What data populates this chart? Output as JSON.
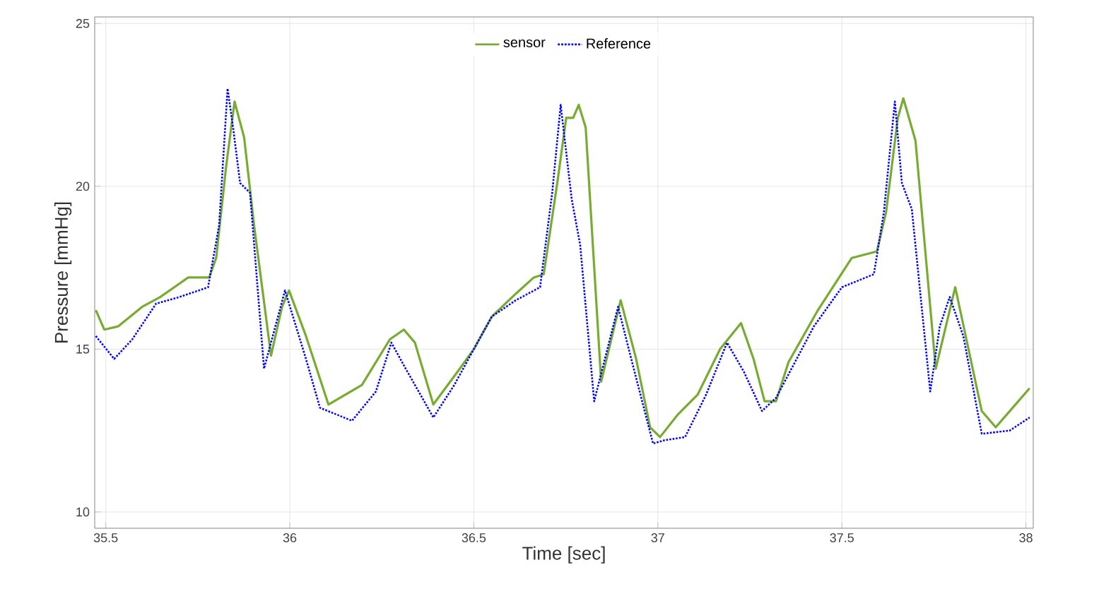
{
  "chart_data": {
    "type": "line",
    "xlabel": "Time [sec]",
    "ylabel": "Pressure [mmHg]",
    "xlim": [
      35.47,
      38.02
    ],
    "ylim": [
      9.5,
      25.2
    ],
    "xticks": [
      35.5,
      36,
      36.5,
      37,
      37.5,
      38
    ],
    "yticks": [
      10,
      15,
      20,
      25
    ],
    "grid": true,
    "legend": "top",
    "series": [
      {
        "name": "sensor",
        "color": "#77ac30",
        "line_style": "solid",
        "x": [
          35.473,
          35.496,
          35.534,
          35.599,
          35.648,
          35.724,
          35.781,
          35.8,
          35.827,
          35.85,
          35.876,
          35.903,
          35.949,
          35.979,
          35.998,
          36.044,
          36.105,
          36.196,
          36.272,
          36.31,
          36.34,
          36.39,
          36.462,
          36.5,
          36.549,
          36.614,
          36.663,
          36.69,
          36.728,
          36.751,
          36.77,
          36.785,
          36.804,
          36.846,
          36.899,
          36.941,
          36.979,
          37.006,
          37.055,
          37.108,
          37.169,
          37.226,
          37.26,
          37.29,
          37.321,
          37.355,
          37.435,
          37.527,
          37.595,
          37.62,
          37.652,
          37.667,
          37.7,
          37.755,
          37.808,
          37.88,
          37.918,
          37.964,
          38.01
        ],
        "values": [
          16.2,
          15.6,
          15.7,
          16.3,
          16.6,
          17.2,
          17.2,
          17.8,
          20.6,
          22.6,
          21.5,
          18.8,
          14.8,
          16.3,
          16.8,
          15.4,
          13.3,
          13.9,
          15.3,
          15.6,
          15.2,
          13.3,
          14.4,
          15.0,
          16.0,
          16.7,
          17.2,
          17.3,
          20.2,
          22.1,
          22.1,
          22.5,
          21.8,
          14.0,
          16.5,
          14.7,
          12.6,
          12.3,
          13.0,
          13.6,
          15.0,
          15.8,
          14.7,
          13.4,
          13.4,
          14.6,
          16.2,
          17.8,
          18.0,
          19.2,
          22.1,
          22.7,
          21.4,
          14.4,
          16.9,
          13.1,
          12.6,
          13.2,
          13.8
        ]
      },
      {
        "name": "Reference",
        "color": "#0000ff",
        "line_style": "dotted",
        "x": [
          35.473,
          35.523,
          35.572,
          35.637,
          35.7,
          35.778,
          35.808,
          35.831,
          35.846,
          35.865,
          35.892,
          35.93,
          35.987,
          36.044,
          36.082,
          36.169,
          36.234,
          36.276,
          36.31,
          36.39,
          36.447,
          36.5,
          36.549,
          36.614,
          36.68,
          36.713,
          36.736,
          36.766,
          36.789,
          36.827,
          36.892,
          36.93,
          36.987,
          37.017,
          37.074,
          37.131,
          37.188,
          37.234,
          37.283,
          37.321,
          37.424,
          37.5,
          37.587,
          37.614,
          37.644,
          37.663,
          37.69,
          37.74,
          37.766,
          37.793,
          37.83,
          37.88,
          37.956,
          38.01
        ],
        "values": [
          15.4,
          14.7,
          15.3,
          16.4,
          16.6,
          16.9,
          18.8,
          23.0,
          21.8,
          20.1,
          19.8,
          14.4,
          16.8,
          14.7,
          13.2,
          12.8,
          13.7,
          15.2,
          14.5,
          12.9,
          13.9,
          15.0,
          16.0,
          16.5,
          16.9,
          19.8,
          22.5,
          19.6,
          18.2,
          13.4,
          16.3,
          14.6,
          12.1,
          12.2,
          12.3,
          13.6,
          15.2,
          14.3,
          13.1,
          13.5,
          15.7,
          16.9,
          17.3,
          19.2,
          22.6,
          20.1,
          19.3,
          13.7,
          15.7,
          16.6,
          15.4,
          12.4,
          12.5,
          12.9
        ]
      }
    ]
  }
}
